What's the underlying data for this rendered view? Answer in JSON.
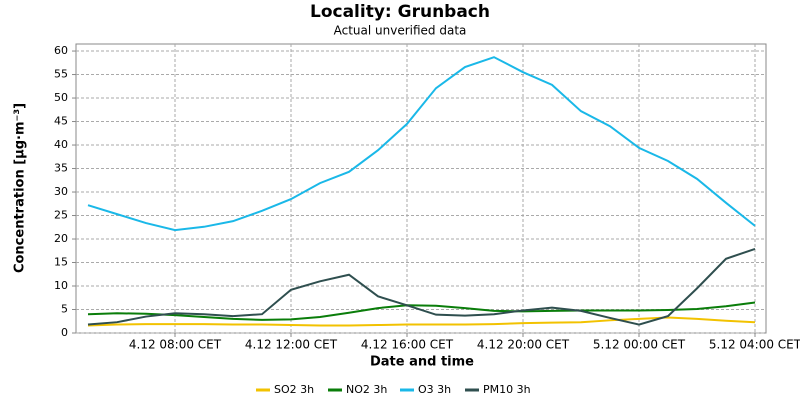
{
  "chart_data": {
    "type": "line",
    "title": "Locality: Grunbach",
    "subtitle": "Actual unverified data",
    "x_label": "Date and time",
    "y_label": "Concentration [µg·m⁻³]",
    "categories": [
      null,
      null,
      null,
      "4.12 08:00 CET",
      null,
      null,
      null,
      "4.12 12:00 CET",
      null,
      null,
      null,
      "4.12 16:00 CET",
      null,
      null,
      null,
      "4.12 20:00 CET",
      null,
      null,
      null,
      "5.12 00:00 CET",
      null,
      null,
      null,
      "5.12 04:00 CET"
    ],
    "series": [
      {
        "name": "SO2 3h",
        "color": "#f2c200",
        "values": [
          1.6,
          1.8,
          1.9,
          1.9,
          1.9,
          1.8,
          1.8,
          1.7,
          1.6,
          1.6,
          1.7,
          1.8,
          1.8,
          1.8,
          1.9,
          2.1,
          2.2,
          2.3,
          2.7,
          3.0,
          3.3,
          3.0,
          2.6,
          2.3
        ]
      },
      {
        "name": "NO2 3h",
        "color": "#0a7d0a",
        "values": [
          4.0,
          4.2,
          4.1,
          3.8,
          3.4,
          3.0,
          2.8,
          2.9,
          3.4,
          4.3,
          5.3,
          5.9,
          5.8,
          5.3,
          4.7,
          4.6,
          4.7,
          4.8,
          4.8,
          4.8,
          4.9,
          5.1,
          5.7,
          6.5
        ]
      },
      {
        "name": "O3 3h",
        "color": "#1ab8e8",
        "values": [
          27.2,
          25.3,
          23.4,
          21.9,
          22.6,
          23.8,
          26.0,
          28.5,
          31.9,
          34.3,
          38.9,
          44.5,
          52.1,
          56.6,
          58.7,
          55.5,
          52.8,
          47.2,
          44.0,
          39.4,
          36.6,
          32.8,
          27.7,
          22.8
        ]
      },
      {
        "name": "PM10 3h",
        "color": "#2f4f4f",
        "values": [
          1.8,
          2.3,
          3.5,
          4.2,
          4.0,
          3.6,
          4.0,
          9.2,
          11.0,
          12.4,
          7.8,
          5.9,
          3.9,
          3.7,
          4.0,
          4.8,
          5.4,
          4.7,
          3.2,
          1.8,
          3.6,
          9.5,
          15.8,
          17.9
        ]
      }
    ],
    "ylim": [
      0,
      61.5
    ],
    "yticks": [
      0,
      5,
      10,
      15,
      20,
      25,
      30,
      35,
      40,
      45,
      50,
      55,
      60
    ],
    "grid": true,
    "legend": "bottom"
  }
}
